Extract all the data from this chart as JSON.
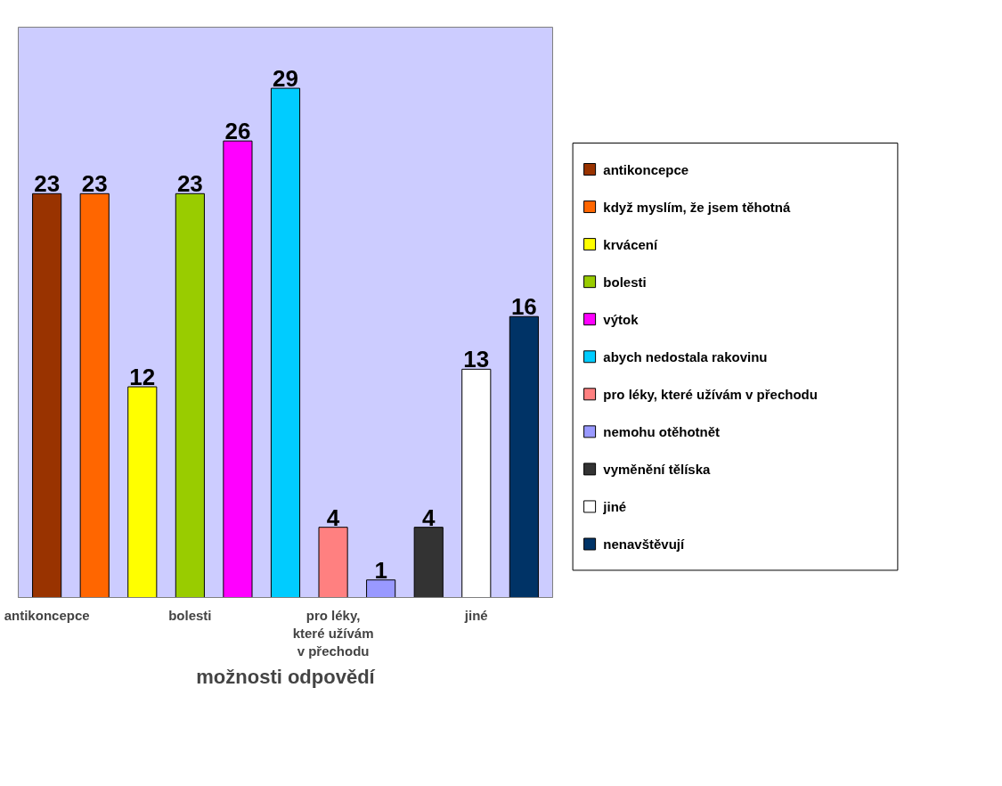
{
  "chart_data": {
    "type": "bar",
    "xlabel": "možnosti odpovědí",
    "categories": [
      "antikoncepce",
      null,
      null,
      "bolesti",
      null,
      null,
      "pro léky, které užívám v přechodu",
      null,
      null,
      "jiné",
      null
    ],
    "series": [
      {
        "name": "antikoncepce",
        "color": "#993300",
        "values": [
          23,
          null,
          null,
          null,
          null,
          null,
          null,
          null,
          null,
          null,
          null
        ]
      },
      {
        "name": "když myslím, že jsem těhotná",
        "color": "#ff6600",
        "values": [
          null,
          23,
          null,
          null,
          null,
          null,
          null,
          null,
          null,
          null,
          null
        ]
      },
      {
        "name": "krvácení",
        "color": "#ffff00",
        "values": [
          null,
          null,
          12,
          null,
          null,
          null,
          null,
          null,
          null,
          null,
          null
        ]
      },
      {
        "name": "bolesti",
        "color": "#99cc00",
        "values": [
          null,
          null,
          null,
          23,
          null,
          null,
          null,
          null,
          null,
          null,
          null
        ]
      },
      {
        "name": "výtok",
        "color": "#ff00ff",
        "values": [
          null,
          null,
          null,
          null,
          26,
          null,
          null,
          null,
          null,
          null,
          null
        ]
      },
      {
        "name": "abych nedostala rakovinu",
        "color": "#00ccff",
        "values": [
          null,
          null,
          null,
          null,
          null,
          29,
          null,
          null,
          null,
          null,
          null
        ]
      },
      {
        "name": "pro léky, které užívám v přechodu",
        "color": "#ff8080",
        "values": [
          null,
          null,
          null,
          null,
          null,
          null,
          4,
          null,
          null,
          null,
          null
        ]
      },
      {
        "name": "nemohu otěhotnět",
        "color": "#9999ff",
        "values": [
          null,
          null,
          null,
          null,
          null,
          null,
          null,
          1,
          null,
          null,
          null
        ]
      },
      {
        "name": "vyměnění tělíska",
        "color": "#333333",
        "values": [
          null,
          null,
          null,
          null,
          null,
          null,
          null,
          null,
          4,
          null,
          null
        ]
      },
      {
        "name": "jiné",
        "color": "#ffffff",
        "values": [
          null,
          null,
          null,
          null,
          null,
          null,
          null,
          null,
          null,
          13,
          null
        ]
      },
      {
        "name": "nenavštěvují",
        "color": "#003366",
        "values": [
          null,
          null,
          null,
          null,
          null,
          null,
          null,
          null,
          null,
          null,
          16
        ]
      }
    ],
    "data_labels": true,
    "legend": "right",
    "grid": false
  }
}
